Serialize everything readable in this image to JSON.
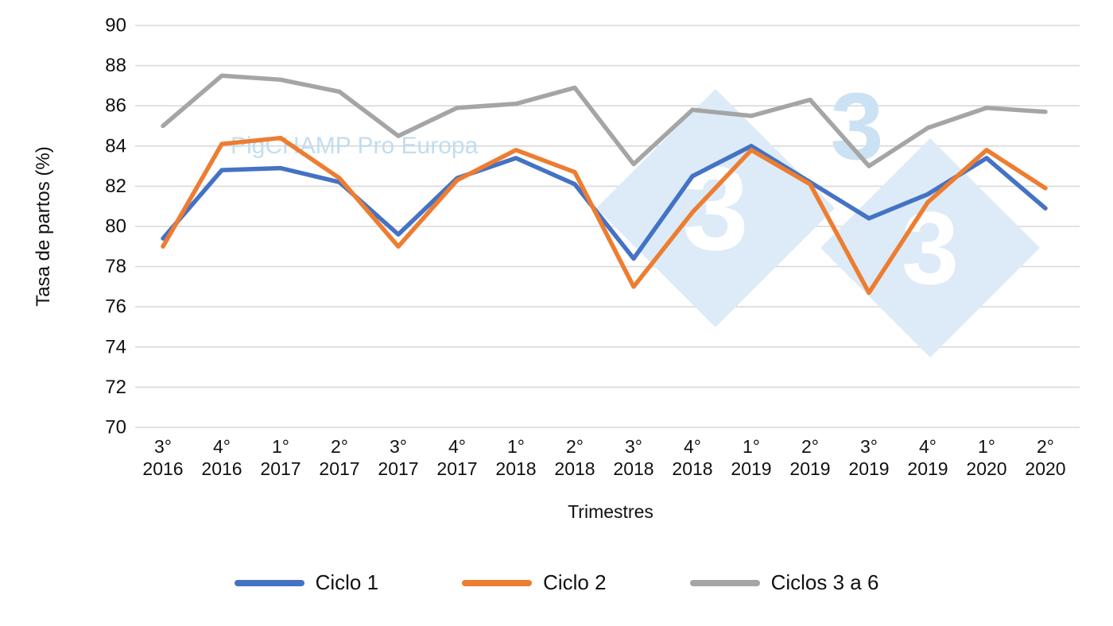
{
  "chart_data": {
    "type": "line",
    "title": "",
    "xlabel": "Trimestres",
    "ylabel": "Tasa de partos (%)",
    "ylim": [
      70,
      90
    ],
    "yticks": [
      70,
      72,
      74,
      76,
      78,
      80,
      82,
      84,
      86,
      88,
      90
    ],
    "grid": true,
    "legend_position": "bottom",
    "categories": [
      {
        "quarter": "3°",
        "year": "2016"
      },
      {
        "quarter": "4°",
        "year": "2016"
      },
      {
        "quarter": "1°",
        "year": "2017"
      },
      {
        "quarter": "2°",
        "year": "2017"
      },
      {
        "quarter": "3°",
        "year": "2017"
      },
      {
        "quarter": "4°",
        "year": "2017"
      },
      {
        "quarter": "1°",
        "year": "2018"
      },
      {
        "quarter": "2°",
        "year": "2018"
      },
      {
        "quarter": "3°",
        "year": "2018"
      },
      {
        "quarter": "4°",
        "year": "2018"
      },
      {
        "quarter": "1°",
        "year": "2019"
      },
      {
        "quarter": "2°",
        "year": "2019"
      },
      {
        "quarter": "3°",
        "year": "2019"
      },
      {
        "quarter": "4°",
        "year": "2019"
      },
      {
        "quarter": "1°",
        "year": "2020"
      },
      {
        "quarter": "2°",
        "year": "2020"
      }
    ],
    "series": [
      {
        "name": "Ciclo 1",
        "color": "#4472C4",
        "values": [
          79.4,
          82.8,
          82.9,
          82.2,
          79.6,
          82.4,
          83.4,
          82.1,
          78.4,
          82.5,
          84.0,
          82.2,
          80.4,
          81.6,
          83.4,
          80.9
        ]
      },
      {
        "name": "Ciclo 2",
        "color": "#ED7D31",
        "values": [
          79.0,
          84.1,
          84.4,
          82.4,
          79.0,
          82.3,
          83.8,
          82.7,
          77.0,
          80.7,
          83.8,
          82.1,
          76.7,
          81.2,
          83.8,
          81.9
        ]
      },
      {
        "name": "Ciclos 3 a 6",
        "color": "#A5A5A5",
        "values": [
          85.0,
          87.5,
          87.3,
          86.7,
          84.5,
          85.9,
          86.1,
          86.9,
          83.1,
          85.8,
          85.5,
          86.3,
          83.0,
          84.9,
          85.9,
          85.7
        ]
      }
    ]
  },
  "watermark": {
    "text": "PigCHAMP Pro Europa",
    "text_color": "#BFDCEF",
    "logo_text": "3",
    "logo_color": "#DCEBF7",
    "logo_accent_color": "#CBE2F4"
  }
}
